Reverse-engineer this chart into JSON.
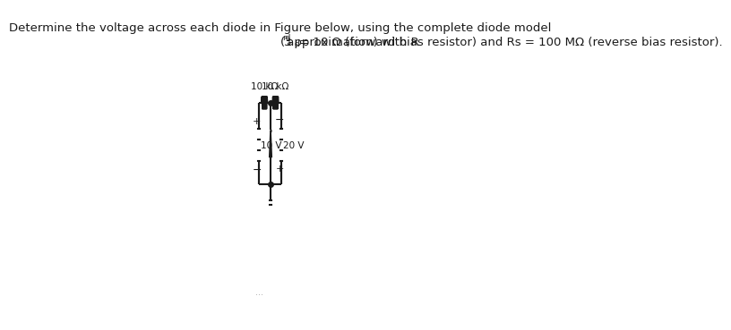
{
  "title_line1": "Determine the voltage across each diode in Figure below, using the complete diode model",
  "title_line2": "(3rd approximation) with Rd = 10 Ω (forward bias resistor) and Rs = 100 MΩ (reverse bias resistor).",
  "bg_color": "#ffffff",
  "line_color": "#1a1a1a",
  "res1_label": "10 kΩ",
  "res2_label": "10 kΩ",
  "v1_label": "10 V",
  "v2_label": "20 V",
  "font_size_title": 9.5,
  "font_size_circuit": 7.5
}
